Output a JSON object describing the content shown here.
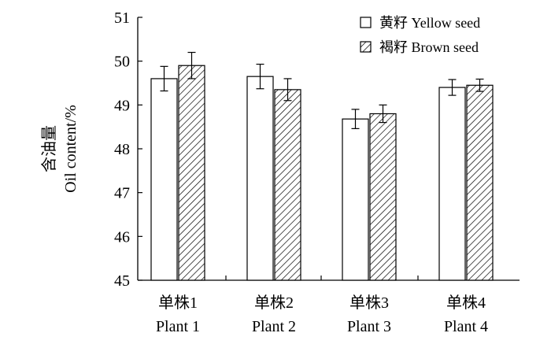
{
  "chart_data": {
    "type": "bar",
    "title": "",
    "xlabel": "",
    "ylabel": [
      "含油量",
      "Oil content/%"
    ],
    "ylim": [
      45,
      51
    ],
    "yticks": [
      45,
      46,
      47,
      48,
      49,
      50,
      51
    ],
    "categories": [
      [
        "单株1",
        "Plant 1"
      ],
      [
        "单株2",
        "Plant 2"
      ],
      [
        "单株3",
        "Plant 3"
      ],
      [
        "单株4",
        "Plant 4"
      ]
    ],
    "series": [
      {
        "name": "黄籽  Yellow seed",
        "fill": "white",
        "values": [
          49.6,
          49.65,
          48.68,
          49.4
        ],
        "errors": [
          0.28,
          0.28,
          0.22,
          0.18
        ]
      },
      {
        "name": "褐籽  Brown seed",
        "fill": "hatch",
        "values": [
          49.9,
          49.35,
          48.8,
          49.45
        ],
        "errors": [
          0.3,
          0.25,
          0.2,
          0.14
        ]
      }
    ],
    "legend": "top-right",
    "grid": false
  },
  "colors": {
    "stroke": "#000000",
    "background": "#ffffff"
  }
}
